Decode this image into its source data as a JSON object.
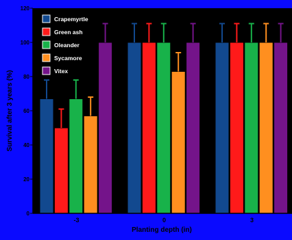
{
  "colors": {
    "outer_background": "#0a0aff",
    "plot_background": "#000000",
    "axis_text": "#000000",
    "error_bar_stroke": "#ffffff"
  },
  "chart_data": {
    "type": "bar",
    "xlabel": "Planting depth (in)",
    "ylabel": "Survival after 3 years (%)",
    "categories": [
      "-3",
      "0",
      "3"
    ],
    "ylim": [
      0,
      120
    ],
    "yticks": [
      0,
      20,
      40,
      60,
      80,
      100,
      120
    ],
    "grid": false,
    "legend_position": "top-left",
    "series": [
      {
        "name": "Crapemyrtle",
        "color": "#12498f",
        "values": [
          67,
          100,
          100
        ],
        "errors": [
          11,
          11,
          11
        ]
      },
      {
        "name": "Green ash",
        "color": "#ff1a1a",
        "values": [
          50,
          100,
          100
        ],
        "errors": [
          11,
          11,
          11
        ]
      },
      {
        "name": "Oleander",
        "color": "#18b24a",
        "values": [
          67,
          100,
          100
        ],
        "errors": [
          11,
          11,
          11
        ]
      },
      {
        "name": "Sycamore",
        "color": "#ff8f1f",
        "values": [
          57,
          83,
          100
        ],
        "errors": [
          11,
          11,
          11
        ]
      },
      {
        "name": "Vitex",
        "color": "#74148a",
        "values": [
          100,
          100,
          100
        ],
        "errors": [
          11,
          11,
          11
        ]
      }
    ]
  }
}
